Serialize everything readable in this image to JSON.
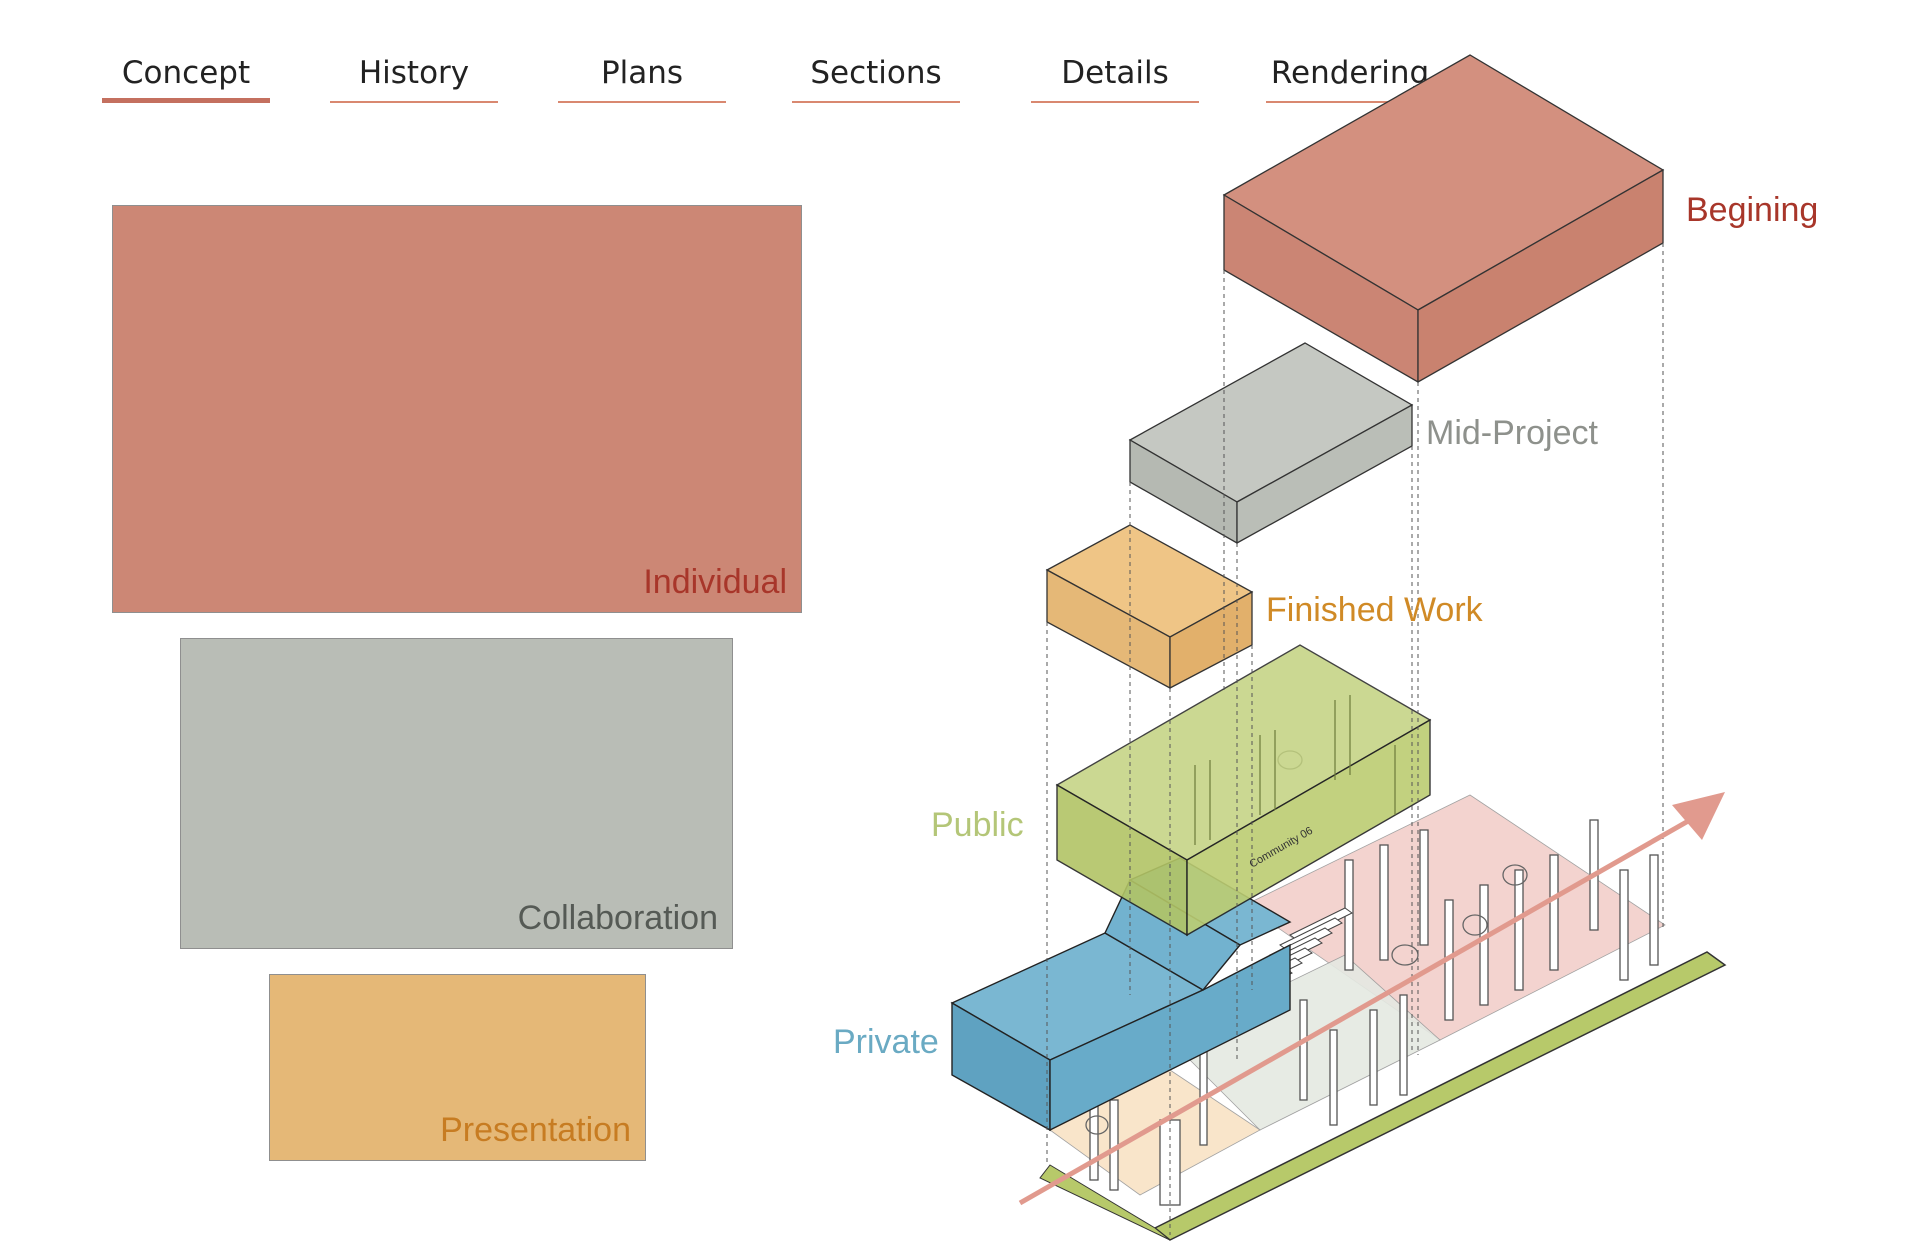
{
  "nav": {
    "tabs": [
      {
        "label": "Concept",
        "active": true
      },
      {
        "label": "History",
        "active": false
      },
      {
        "label": "Plans",
        "active": false
      },
      {
        "label": "Sections",
        "active": false
      },
      {
        "label": "Details",
        "active": false
      },
      {
        "label": "Rendering",
        "active": false
      }
    ]
  },
  "legend_blocks": {
    "individual": "Individual",
    "collaboration": "Collaboration",
    "presentation": "Presentation"
  },
  "axonometric": {
    "stage_labels": {
      "begining": "Begining",
      "mid_project": "Mid-Project",
      "finished_work": "Finished Work"
    },
    "zone_labels": {
      "public": "Public",
      "private": "Private"
    },
    "plan_tag": "Community 06"
  },
  "colors": {
    "terracotta": "#cc8775",
    "terracotta_text": "#a8362a",
    "grey": "#b9bdb6",
    "grey_text": "#8e918c",
    "orange": "#e5b877",
    "orange_text": "#d08a26",
    "green": "#b7c96a",
    "green_text": "#b4c678",
    "blue": "#6eaecb",
    "blue_text": "#6aaac3",
    "pink_floor": "#f2cfca",
    "arrow": "#e19a8e",
    "tab_underline": "#d98870"
  }
}
